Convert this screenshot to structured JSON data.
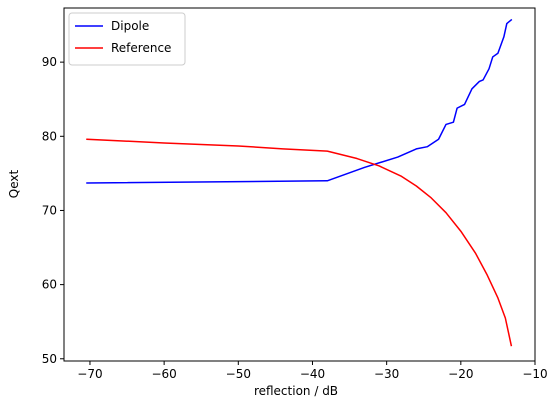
{
  "chart_data": {
    "type": "line",
    "xlabel": "reflection / dB",
    "ylabel": "Qext",
    "xlim": [
      -73.5,
      -10
    ],
    "ylim": [
      49.7,
      97.3
    ],
    "xticks": [
      -70,
      -60,
      -50,
      -40,
      -30,
      -20,
      -10
    ],
    "xtick_labels": [
      "−70",
      "−60",
      "−50",
      "−40",
      "−30",
      "−20",
      "−10"
    ],
    "yticks": [
      50,
      60,
      70,
      80,
      90
    ],
    "ytick_labels": [
      "50",
      "60",
      "70",
      "80",
      "90"
    ],
    "grid": false,
    "legend_position": "top-left",
    "series": [
      {
        "name": "Dipole",
        "color": "#0000ff",
        "points": [
          [
            -70.4,
            73.7
          ],
          [
            -38.0,
            74.0
          ],
          [
            -33.0,
            75.8
          ],
          [
            -28.5,
            77.2
          ],
          [
            -26.0,
            78.3
          ],
          [
            -24.5,
            78.6
          ],
          [
            -23.0,
            79.6
          ],
          [
            -22.0,
            81.6
          ],
          [
            -21.0,
            81.9
          ],
          [
            -20.5,
            83.8
          ],
          [
            -19.5,
            84.3
          ],
          [
            -18.5,
            86.4
          ],
          [
            -17.5,
            87.4
          ],
          [
            -17.0,
            87.6
          ],
          [
            -16.2,
            89.1
          ],
          [
            -15.7,
            90.7
          ],
          [
            -15.0,
            91.2
          ],
          [
            -14.2,
            93.4
          ],
          [
            -13.8,
            95.2
          ],
          [
            -13.2,
            95.7
          ]
        ]
      },
      {
        "name": "Reference",
        "color": "#ff0000",
        "points": [
          [
            -70.4,
            79.6
          ],
          [
            -60.0,
            79.1
          ],
          [
            -50.0,
            78.7
          ],
          [
            -44.0,
            78.3
          ],
          [
            -38.0,
            78.0
          ],
          [
            -34.0,
            77.0
          ],
          [
            -31.0,
            76.0
          ],
          [
            -28.0,
            74.6
          ],
          [
            -26.0,
            73.3
          ],
          [
            -24.0,
            71.7
          ],
          [
            -22.0,
            69.7
          ],
          [
            -20.0,
            67.2
          ],
          [
            -18.0,
            64.2
          ],
          [
            -16.5,
            61.4
          ],
          [
            -15.0,
            58.2
          ],
          [
            -14.0,
            55.5
          ],
          [
            -13.2,
            51.8
          ]
        ]
      }
    ]
  }
}
